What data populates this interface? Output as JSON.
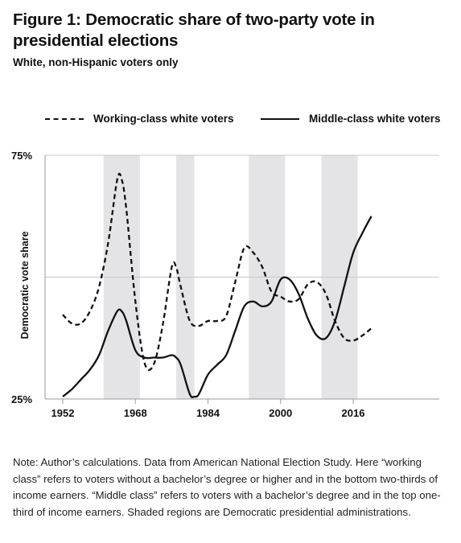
{
  "title": "Figure 1: Democratic share of two-party vote in presidential elections",
  "subtitle": "White, non-Hispanic voters only",
  "note": "Note: Author’s calculations. Data from American National Election Study. Here “working class” refers to voters without a bachelor’s degree or higher and in the bottom two-thirds of income earners. “Middle class” refers to voters with a bachelor’s degree and in the top one-third of income earners. Shaded regions are Democratic presidential administrations.",
  "colors": {
    "line": "#111111",
    "shade": "#e4e4e6",
    "gridline": "#c8c8c8",
    "axis": "#9a9a9a"
  },
  "chart_data": {
    "type": "line",
    "title": "",
    "xlabel": "",
    "ylabel": "Democratic vote share",
    "ylim": [
      25,
      75
    ],
    "xlim": [
      1952,
      2020
    ],
    "x_ticks": [
      1952,
      1968,
      1984,
      2000,
      2016
    ],
    "x_tick_labels": [
      "1952",
      "1968",
      "1984",
      "2000",
      "2016"
    ],
    "y_ticks": [
      25,
      75
    ],
    "y_tick_labels": [
      "25%",
      "75%"
    ],
    "gridlines_y": [
      50,
      75
    ],
    "legend_position": "top",
    "shaded_periods": [
      [
        1961,
        1969
      ],
      [
        1977,
        1981
      ],
      [
        1993,
        2001
      ],
      [
        2009,
        2017
      ]
    ],
    "series": [
      {
        "name": "Working-class white voters",
        "style": "dashed",
        "points": [
          [
            1952,
            42.3
          ],
          [
            1954,
            40.5
          ],
          [
            1956,
            40.5
          ],
          [
            1958,
            43
          ],
          [
            1960,
            48
          ],
          [
            1962,
            57
          ],
          [
            1964,
            70
          ],
          [
            1965,
            70
          ],
          [
            1966,
            64
          ],
          [
            1968,
            45
          ],
          [
            1970,
            32.5
          ],
          [
            1972,
            32
          ],
          [
            1974,
            40
          ],
          [
            1976,
            52
          ],
          [
            1977,
            52
          ],
          [
            1978,
            48
          ],
          [
            1980,
            41
          ],
          [
            1982,
            40
          ],
          [
            1984,
            41
          ],
          [
            1986,
            41
          ],
          [
            1988,
            42
          ],
          [
            1990,
            49
          ],
          [
            1992,
            56
          ],
          [
            1994,
            55
          ],
          [
            1996,
            52
          ],
          [
            1998,
            47
          ],
          [
            2000,
            46
          ],
          [
            2002,
            45
          ],
          [
            2004,
            45.5
          ],
          [
            2006,
            48.5
          ],
          [
            2008,
            49
          ],
          [
            2010,
            46.5
          ],
          [
            2012,
            41
          ],
          [
            2014,
            37.5
          ],
          [
            2016,
            37
          ],
          [
            2018,
            38
          ],
          [
            2020,
            39.5
          ]
        ]
      },
      {
        "name": "Middle-class white voters",
        "style": "solid",
        "points": [
          [
            1952,
            25.5
          ],
          [
            1954,
            27
          ],
          [
            1956,
            29
          ],
          [
            1958,
            31
          ],
          [
            1960,
            34
          ],
          [
            1962,
            39
          ],
          [
            1964,
            43
          ],
          [
            1965,
            43
          ],
          [
            1966,
            41
          ],
          [
            1968,
            35
          ],
          [
            1970,
            33.5
          ],
          [
            1972,
            33.5
          ],
          [
            1974,
            33.5
          ],
          [
            1976,
            34
          ],
          [
            1977,
            33.5
          ],
          [
            1978,
            32
          ],
          [
            1980,
            26
          ],
          [
            1981,
            25.5
          ],
          [
            1982,
            26
          ],
          [
            1984,
            30
          ],
          [
            1986,
            32
          ],
          [
            1988,
            34
          ],
          [
            1990,
            39
          ],
          [
            1992,
            44
          ],
          [
            1994,
            45
          ],
          [
            1996,
            44
          ],
          [
            1998,
            45
          ],
          [
            2000,
            49.5
          ],
          [
            2002,
            49.5
          ],
          [
            2004,
            46.5
          ],
          [
            2006,
            41.5
          ],
          [
            2008,
            38
          ],
          [
            2010,
            37.5
          ],
          [
            2012,
            41
          ],
          [
            2014,
            48
          ],
          [
            2016,
            55
          ],
          [
            2018,
            59
          ],
          [
            2020,
            62.5
          ]
        ]
      }
    ]
  }
}
